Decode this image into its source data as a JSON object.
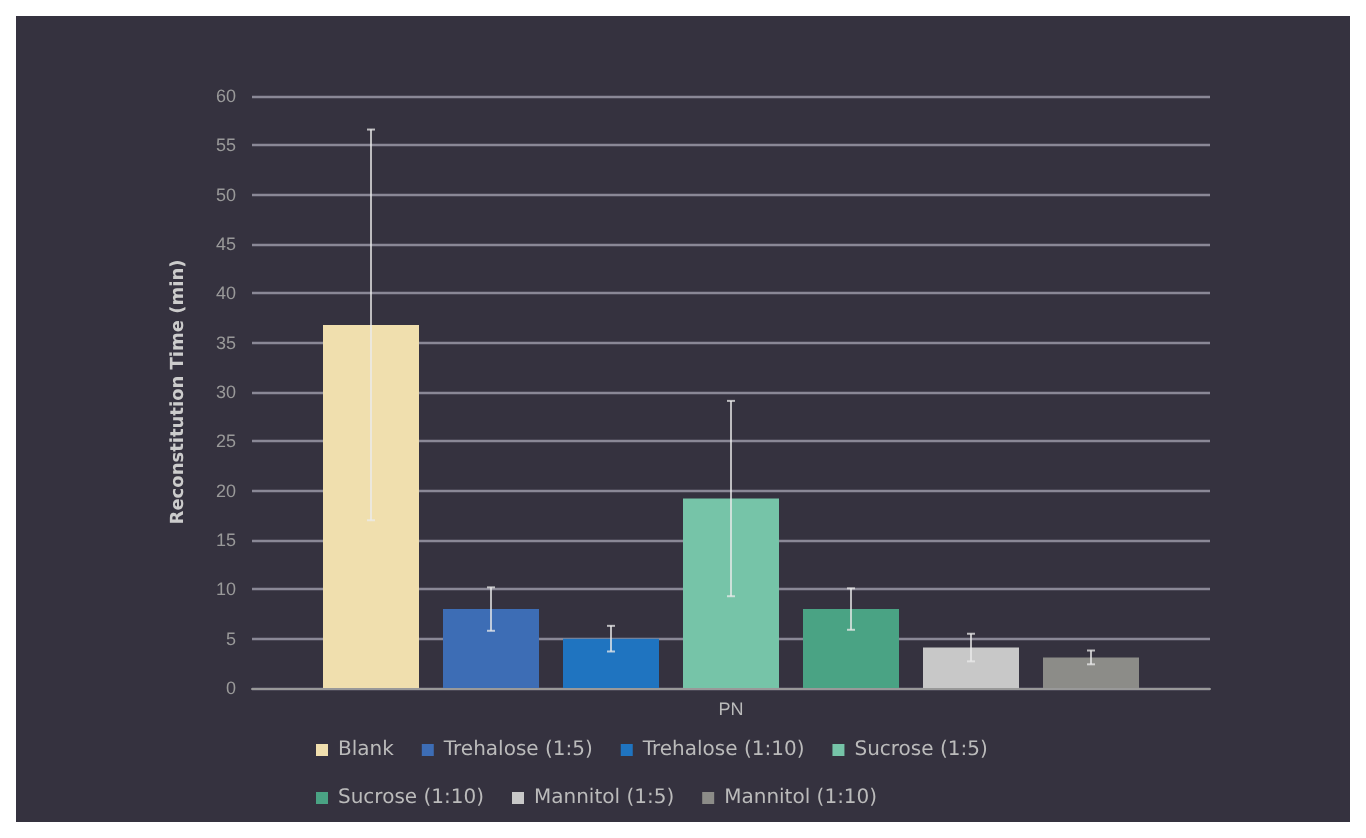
{
  "chart_data": {
    "type": "bar",
    "ylabel": "Reconstitution Time (min)",
    "categories": [
      "PN"
    ],
    "ylim": [
      0,
      60
    ],
    "yticks": [
      0,
      5,
      10,
      15,
      20,
      25,
      30,
      35,
      40,
      45,
      50,
      55,
      60
    ],
    "grid": "y",
    "legend": "bottom",
    "series": [
      {
        "name": "Blank",
        "color": "#f0dfae",
        "values": [
          36.8
        ],
        "errors": [
          19.8
        ]
      },
      {
        "name": "Trehalose (1:5)",
        "color": "#3d6db5",
        "values": [
          8.0
        ],
        "errors": [
          2.2
        ]
      },
      {
        "name": "Trehalose (1:10)",
        "color": "#1f74c0",
        "values": [
          5.0
        ],
        "errors": [
          1.3
        ]
      },
      {
        "name": "Sucrose (1:5)",
        "color": "#76c4a8",
        "values": [
          19.2
        ],
        "errors": [
          9.9
        ]
      },
      {
        "name": "Sucrose (1:10)",
        "color": "#4aa384",
        "values": [
          8.0
        ],
        "errors": [
          2.1
        ]
      },
      {
        "name": "Mannitol (1:5)",
        "color": "#c8c8c8",
        "values": [
          4.1
        ],
        "errors": [
          1.4
        ]
      },
      {
        "name": "Mannitol (1:10)",
        "color": "#8c8c88",
        "values": [
          3.1
        ],
        "errors": [
          0.7
        ]
      }
    ]
  }
}
